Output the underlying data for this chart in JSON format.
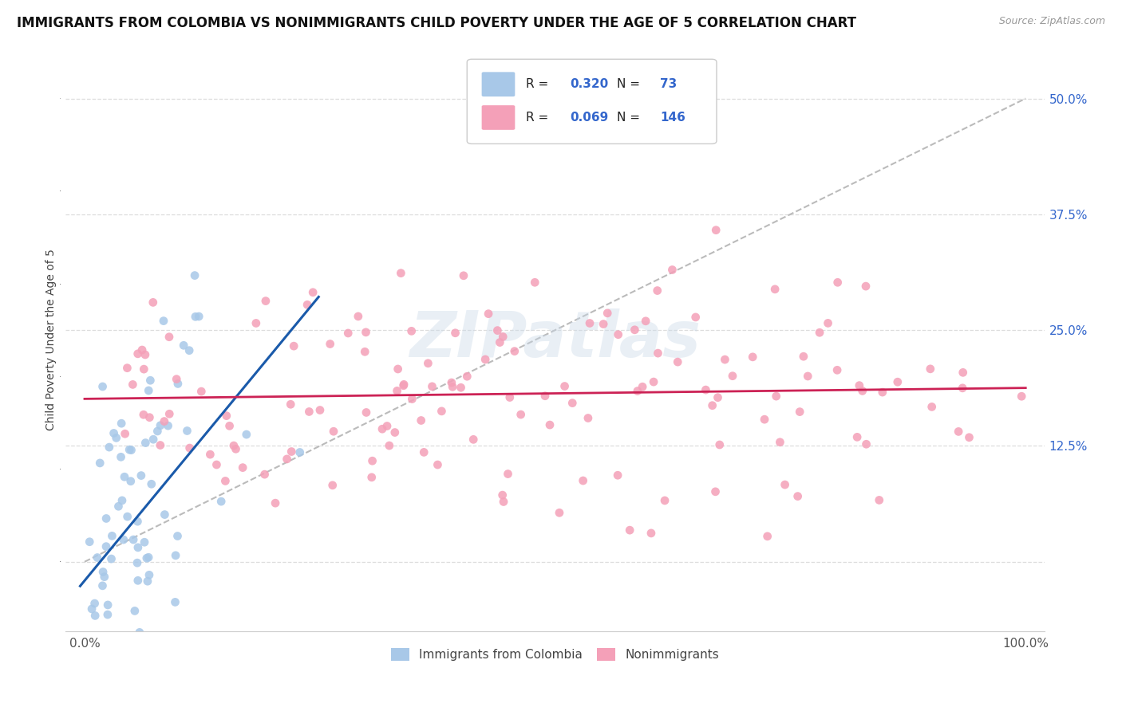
{
  "title": "IMMIGRANTS FROM COLOMBIA VS NONIMMIGRANTS CHILD POVERTY UNDER THE AGE OF 5 CORRELATION CHART",
  "source": "Source: ZipAtlas.com",
  "ylabel": "Child Poverty Under the Age of 5",
  "xlim": [
    -0.02,
    1.02
  ],
  "ylim": [
    -0.075,
    0.555
  ],
  "xticks": [
    0.0,
    1.0
  ],
  "xticklabels": [
    "0.0%",
    "100.0%"
  ],
  "ytick_positions": [
    0.0,
    0.125,
    0.25,
    0.375,
    0.5
  ],
  "ytick_labels": [
    "",
    "12.5%",
    "25.0%",
    "37.5%",
    "50.0%"
  ],
  "series1_color": "#a8c8e8",
  "series2_color": "#f4a0b8",
  "line1_color": "#1a5aaa",
  "line2_color": "#cc2255",
  "R1": 0.32,
  "N1": 73,
  "R2": 0.069,
  "N2": 146,
  "legend_label1": "Immigrants from Colombia",
  "legend_label2": "Nonimmigrants",
  "watermark": "ZIPatlas",
  "title_fontsize": 12,
  "axis_label_fontsize": 10,
  "tick_fontsize": 11,
  "background_color": "#ffffff",
  "grid_color": "#dddddd"
}
